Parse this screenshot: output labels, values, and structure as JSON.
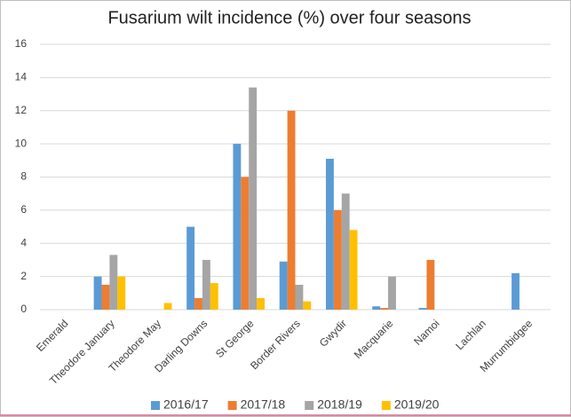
{
  "chart_data": {
    "type": "bar",
    "title": "Fusarium wilt incidence (%) over four seasons",
    "categories": [
      "Emerald",
      "Theodore January",
      "Theodore May",
      "Darling Downs",
      "St George",
      "Border Rivers",
      "Gwydir",
      "Macquarie",
      "Namoi",
      "Lachlan",
      "Murrumbidgee"
    ],
    "series": [
      {
        "name": "2016/17",
        "color": "#5b9bd5",
        "values": [
          0,
          2.0,
          0,
          5.0,
          10.0,
          2.9,
          9.1,
          0.2,
          0.1,
          0,
          2.2
        ]
      },
      {
        "name": "2017/18",
        "color": "#ed7d31",
        "values": [
          0,
          1.5,
          0,
          0.7,
          8.0,
          12.0,
          6.0,
          0.1,
          3.0,
          0,
          0
        ]
      },
      {
        "name": "2018/19",
        "color": "#a5a5a5",
        "values": [
          0,
          3.3,
          0,
          3.0,
          13.4,
          1.5,
          7.0,
          2.0,
          0,
          0,
          0
        ]
      },
      {
        "name": "2019/20",
        "color": "#ffc000",
        "values": [
          0,
          2.0,
          0.4,
          1.6,
          0.7,
          0.5,
          4.8,
          0,
          0,
          0,
          0
        ]
      }
    ],
    "ylim": [
      0,
      16
    ],
    "yticks": [
      0,
      2,
      4,
      6,
      8,
      10,
      12,
      14,
      16
    ],
    "grid": true,
    "legend": "bottom"
  }
}
